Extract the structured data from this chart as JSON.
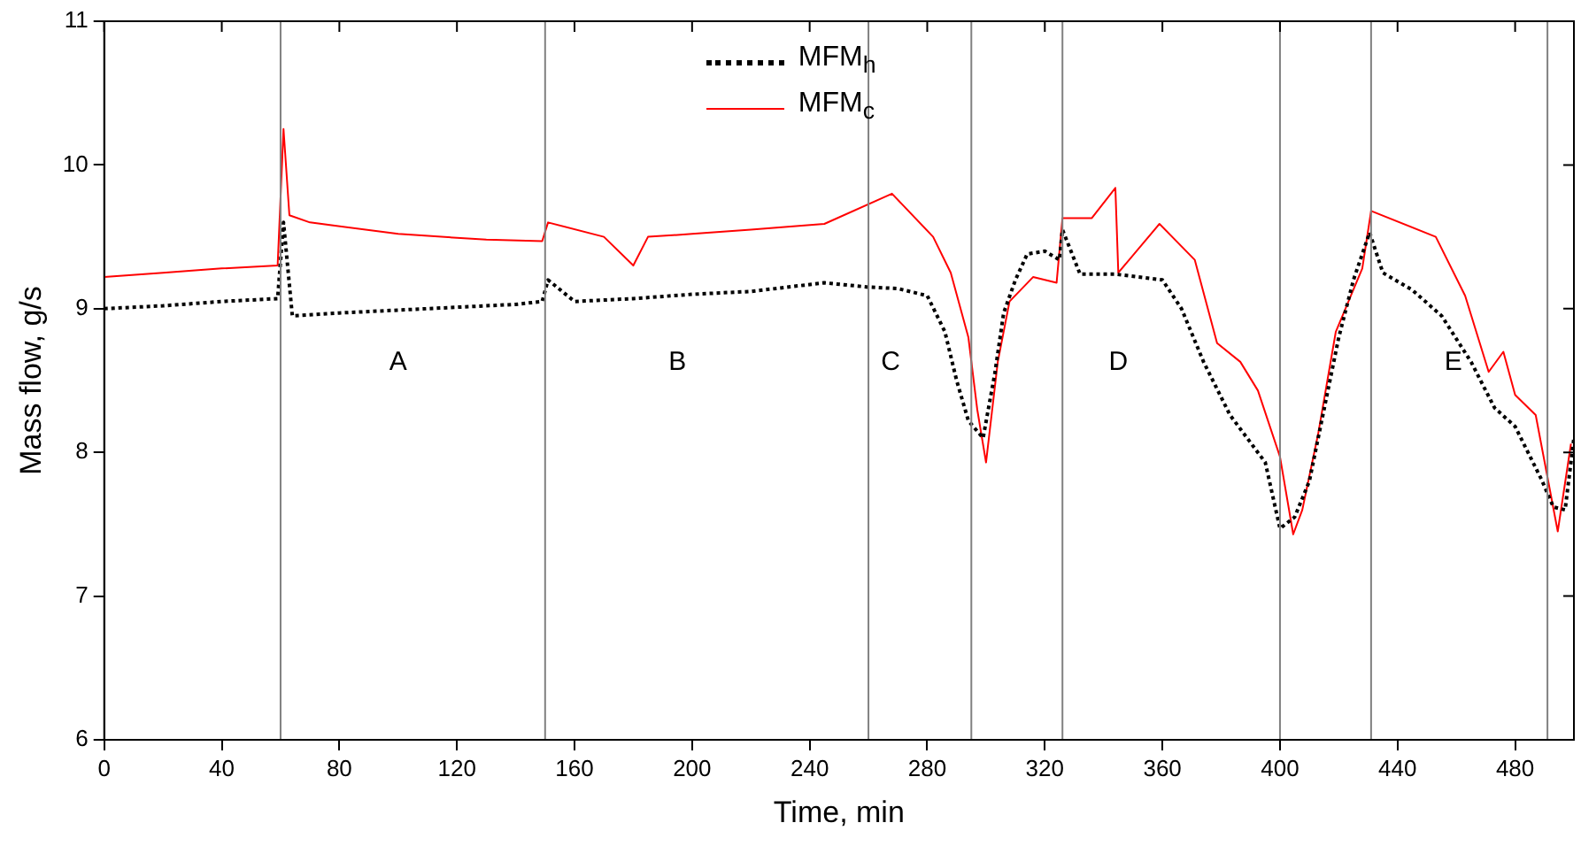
{
  "chart_data": {
    "type": "line",
    "xlabel": "Time, min",
    "ylabel": "Mass flow, g/s",
    "xlim": [
      0,
      500
    ],
    "ylim": [
      6,
      11
    ],
    "xticks": [
      0,
      40,
      80,
      120,
      160,
      200,
      240,
      280,
      320,
      360,
      400,
      440,
      480
    ],
    "yticks": [
      6,
      7,
      8,
      9,
      10,
      11
    ],
    "grid": false,
    "legend": "top",
    "marker": "none",
    "series": [
      {
        "name": "MFM$_{h}$",
        "color": "#000000",
        "line_style": "dotted",
        "x": [
          0,
          20,
          40,
          59,
          61,
          64,
          80,
          100,
          120,
          140,
          149,
          151,
          160,
          180,
          200,
          220,
          245,
          260,
          270,
          280,
          286,
          290,
          294,
          299,
          303,
          306,
          310,
          314,
          320,
          325,
          326,
          332,
          344,
          360,
          366.5,
          374,
          383,
          395,
          400,
          405,
          410,
          415,
          420,
          425,
          430.5,
          435,
          445,
          455,
          465,
          473,
          480,
          489,
          493,
          497,
          500
        ],
        "values": [
          9.0,
          9.02,
          9.05,
          9.07,
          9.6,
          8.95,
          8.97,
          8.99,
          9.01,
          9.03,
          9.05,
          9.2,
          9.05,
          9.07,
          9.1,
          9.12,
          9.18,
          9.15,
          9.14,
          9.09,
          8.84,
          8.5,
          8.22,
          8.1,
          8.55,
          8.97,
          9.2,
          9.38,
          9.4,
          9.34,
          9.55,
          9.24,
          9.24,
          9.2,
          9.0,
          8.63,
          8.26,
          7.93,
          7.47,
          7.55,
          7.8,
          8.3,
          8.8,
          9.2,
          9.53,
          9.25,
          9.13,
          8.95,
          8.63,
          8.31,
          8.18,
          7.81,
          7.62,
          7.6,
          8.1
        ]
      },
      {
        "name": "MFM$_{c}$",
        "color": "#ff0000",
        "line_style": "solid",
        "x": [
          0,
          20,
          40,
          59,
          61,
          63,
          70,
          100,
          130,
          149,
          151,
          170,
          180,
          185,
          200,
          220,
          245,
          268,
          282,
          288,
          294,
          297,
          300,
          304,
          308,
          316,
          324,
          326,
          336,
          344,
          345,
          359,
          371,
          378.6,
          386.5,
          392.5,
          400,
          404.5,
          407.6,
          413,
          419,
          428,
          431,
          453,
          463,
          471,
          476,
          480,
          487,
          494.5,
          499
        ],
        "values": [
          9.22,
          9.25,
          9.28,
          9.3,
          10.25,
          9.65,
          9.6,
          9.52,
          9.48,
          9.47,
          9.6,
          9.5,
          9.3,
          9.5,
          9.52,
          9.55,
          9.59,
          9.8,
          9.5,
          9.25,
          8.8,
          8.3,
          7.93,
          8.63,
          9.05,
          9.22,
          9.18,
          9.63,
          9.63,
          9.84,
          9.25,
          9.59,
          9.34,
          8.76,
          8.63,
          8.43,
          7.97,
          7.43,
          7.6,
          8.13,
          8.84,
          9.28,
          9.68,
          9.5,
          9.09,
          8.56,
          8.7,
          8.4,
          8.26,
          7.45,
          8.06
        ]
      }
    ],
    "ref_lines": [
      {
        "axis": "x",
        "value": 60,
        "color": "#808080"
      },
      {
        "axis": "x",
        "value": 150,
        "color": "#808080"
      },
      {
        "axis": "x",
        "value": 260,
        "color": "#808080"
      },
      {
        "axis": "x",
        "value": 295,
        "color": "#808080"
      },
      {
        "axis": "x",
        "value": 326,
        "color": "#808080"
      },
      {
        "axis": "x",
        "value": 400,
        "color": "#808080"
      },
      {
        "axis": "x",
        "value": 431,
        "color": "#808080"
      },
      {
        "axis": "x",
        "value": 491,
        "color": "#808080"
      }
    ],
    "annotations": [
      "A",
      "B",
      "C",
      "D",
      "E"
    ]
  }
}
